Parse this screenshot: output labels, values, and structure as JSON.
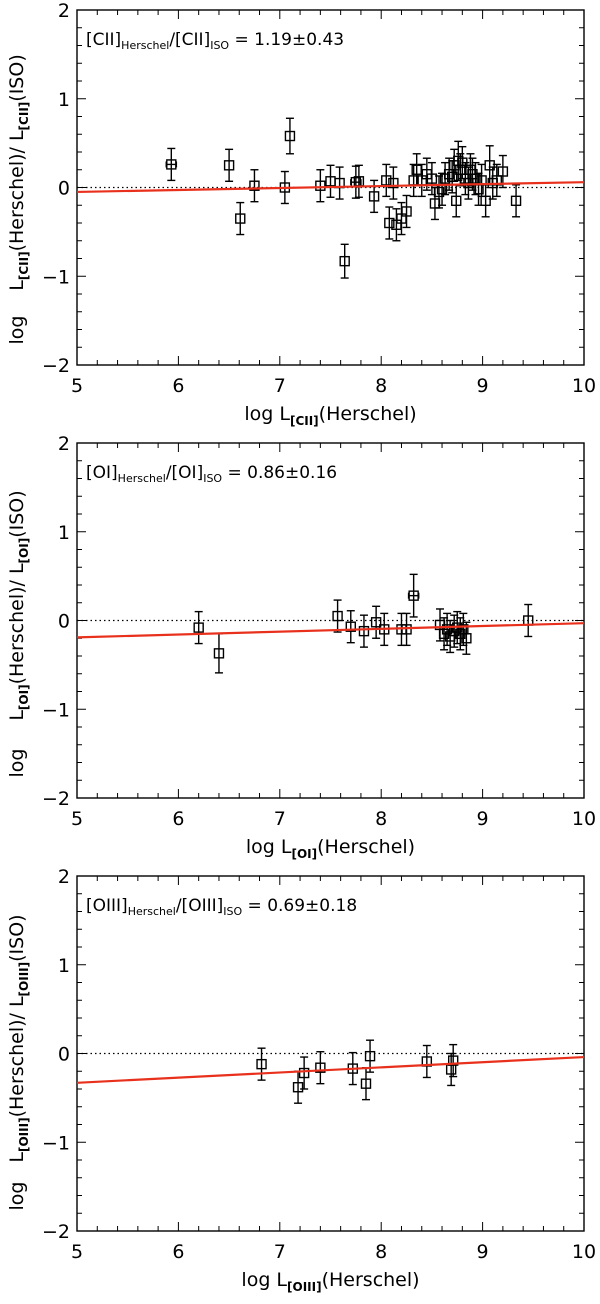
{
  "colors": {
    "axis": "#000000",
    "fit_line": "#e8301c",
    "reference_line": "#000000",
    "marker": "#000000"
  },
  "chart_data": [
    {
      "type": "scatter",
      "line": "CII",
      "annotation": {
        "prefix": "[CII]",
        "sub1": "Herschel",
        "mid": "/[CII]",
        "sub2": "ISO",
        "value": "= 1.19±0.43"
      },
      "xlabel": {
        "pre": "log  L",
        "sub": "[CII]",
        "post": "(Herschel)"
      },
      "ylabel": {
        "log": "log",
        "pre": "L",
        "sub1": "[CII]",
        "mid": "(Herschel)/ L",
        "sub2": "[CII]",
        "post": "(ISO)"
      },
      "xlim": [
        5,
        10
      ],
      "ylim": [
        -2,
        2
      ],
      "x_ticks": [
        5,
        6,
        7,
        8,
        9,
        10
      ],
      "x_tick_labels": [
        "5",
        "6",
        "7",
        "8",
        "9",
        "10"
      ],
      "y_ticks": [
        -2,
        -1,
        0,
        1,
        2
      ],
      "y_tick_labels": [
        "−2",
        "−1",
        "0",
        "1",
        "2"
      ],
      "reference_y": 0,
      "fit_line": {
        "x": [
          5,
          10
        ],
        "y": [
          -0.05,
          0.06
        ]
      },
      "points": [
        {
          "x": 5.93,
          "y": 0.26,
          "yerr": 0.18,
          "xerr": 0.05
        },
        {
          "x": 6.5,
          "y": 0.25,
          "yerr": 0.18
        },
        {
          "x": 6.61,
          "y": -0.35,
          "yerr": 0.18
        },
        {
          "x": 6.75,
          "y": 0.02,
          "yerr": 0.18
        },
        {
          "x": 7.05,
          "y": 0.0,
          "yerr": 0.18
        },
        {
          "x": 7.1,
          "y": 0.58,
          "yerr": 0.2
        },
        {
          "x": 7.4,
          "y": 0.02,
          "yerr": 0.18
        },
        {
          "x": 7.5,
          "y": 0.07,
          "yerr": 0.18
        },
        {
          "x": 7.75,
          "y": 0.06,
          "yerr": 0.18,
          "xerr": 0.05
        },
        {
          "x": 7.78,
          "y": 0.07,
          "yerr": 0.18
        },
        {
          "x": 7.59,
          "y": 0.05,
          "yerr": 0.18
        },
        {
          "x": 7.64,
          "y": -0.83,
          "yerr": 0.19
        },
        {
          "x": 7.93,
          "y": -0.1,
          "yerr": 0.18
        },
        {
          "x": 8.05,
          "y": 0.08,
          "yerr": 0.18
        },
        {
          "x": 8.08,
          "y": -0.4,
          "yerr": 0.18
        },
        {
          "x": 8.12,
          "y": 0.05,
          "yerr": 0.18
        },
        {
          "x": 8.15,
          "y": -0.42,
          "yerr": 0.18
        },
        {
          "x": 8.2,
          "y": -0.35,
          "yerr": 0.18
        },
        {
          "x": 8.25,
          "y": -0.27,
          "yerr": 0.18
        },
        {
          "x": 8.32,
          "y": 0.08,
          "yerr": 0.18
        },
        {
          "x": 8.35,
          "y": 0.2,
          "yerr": 0.18
        },
        {
          "x": 8.4,
          "y": 0.08,
          "yerr": 0.18
        },
        {
          "x": 8.45,
          "y": 0.15,
          "yerr": 0.18
        },
        {
          "x": 8.5,
          "y": 0.1,
          "yerr": 0.18
        },
        {
          "x": 8.53,
          "y": -0.18,
          "yerr": 0.18
        },
        {
          "x": 8.57,
          "y": -0.05,
          "yerr": 0.18
        },
        {
          "x": 8.6,
          "y": -0.02,
          "yerr": 0.18
        },
        {
          "x": 8.63,
          "y": 0.1,
          "yerr": 0.18
        },
        {
          "x": 8.67,
          "y": 0.15,
          "yerr": 0.18
        },
        {
          "x": 8.7,
          "y": 0.12,
          "yerr": 0.18
        },
        {
          "x": 8.72,
          "y": 0.25,
          "yerr": 0.18
        },
        {
          "x": 8.74,
          "y": -0.15,
          "yerr": 0.18
        },
        {
          "x": 8.76,
          "y": 0.3,
          "yerr": 0.22
        },
        {
          "x": 8.78,
          "y": 0.2,
          "yerr": 0.18
        },
        {
          "x": 8.8,
          "y": 0.28,
          "yerr": 0.18
        },
        {
          "x": 8.83,
          "y": 0.1,
          "yerr": 0.18
        },
        {
          "x": 8.86,
          "y": 0.05,
          "yerr": 0.18
        },
        {
          "x": 8.88,
          "y": 0.2,
          "yerr": 0.18
        },
        {
          "x": 8.9,
          "y": 0.15,
          "yerr": 0.18
        },
        {
          "x": 8.93,
          "y": 0.1,
          "yerr": 0.18
        },
        {
          "x": 8.96,
          "y": -0.02,
          "yerr": 0.18
        },
        {
          "x": 8.99,
          "y": 0.08,
          "yerr": 0.18
        },
        {
          "x": 9.03,
          "y": -0.15,
          "yerr": 0.18
        },
        {
          "x": 9.07,
          "y": 0.25,
          "yerr": 0.22
        },
        {
          "x": 9.1,
          "y": 0.05,
          "yerr": 0.18
        },
        {
          "x": 9.14,
          "y": 0.08,
          "yerr": 0.18
        },
        {
          "x": 9.2,
          "y": 0.18,
          "yerr": 0.18
        },
        {
          "x": 9.33,
          "y": -0.15,
          "yerr": 0.18
        }
      ]
    },
    {
      "type": "scatter",
      "line": "OI",
      "annotation": {
        "prefix": "[OI]",
        "sub1": "Herschel",
        "mid": "/[OI]",
        "sub2": "ISO",
        "value": "= 0.86±0.16"
      },
      "xlabel": {
        "pre": "log  L",
        "sub": "[OI]",
        "post": "(Herschel)"
      },
      "ylabel": {
        "log": "log",
        "pre": "L",
        "sub1": "[OI]",
        "mid": "(Herschel)/ L",
        "sub2": "[OI]",
        "post": "(ISO)"
      },
      "xlim": [
        5,
        10
      ],
      "ylim": [
        -2,
        2
      ],
      "x_ticks": [
        5,
        6,
        7,
        8,
        9,
        10
      ],
      "x_tick_labels": [
        "5",
        "6",
        "7",
        "8",
        "9",
        "10"
      ],
      "y_ticks": [
        -2,
        -1,
        0,
        1,
        2
      ],
      "y_tick_labels": [
        "−2",
        "−1",
        "0",
        "1",
        "2"
      ],
      "reference_y": 0,
      "fit_line": {
        "x": [
          5,
          10
        ],
        "y": [
          -0.19,
          -0.03
        ]
      },
      "points": [
        {
          "x": 6.2,
          "y": -0.08,
          "yerr": 0.18
        },
        {
          "x": 6.4,
          "y": -0.37,
          "yerr": 0.22
        },
        {
          "x": 7.57,
          "y": 0.05,
          "yerr": 0.18
        },
        {
          "x": 7.7,
          "y": -0.07,
          "yerr": 0.18
        },
        {
          "x": 7.83,
          "y": -0.12,
          "yerr": 0.18
        },
        {
          "x": 7.95,
          "y": -0.02,
          "yerr": 0.18
        },
        {
          "x": 8.03,
          "y": -0.1,
          "yerr": 0.18
        },
        {
          "x": 8.2,
          "y": -0.1,
          "yerr": 0.18
        },
        {
          "x": 8.25,
          "y": -0.1,
          "yerr": 0.18
        },
        {
          "x": 8.32,
          "y": 0.28,
          "yerr": 0.24,
          "xerr": 0.05
        },
        {
          "x": 8.58,
          "y": -0.05,
          "yerr": 0.18
        },
        {
          "x": 8.62,
          "y": -0.15,
          "yerr": 0.18
        },
        {
          "x": 8.65,
          "y": -0.1,
          "yerr": 0.18
        },
        {
          "x": 8.68,
          "y": -0.18,
          "yerr": 0.18
        },
        {
          "x": 8.72,
          "y": -0.12,
          "yerr": 0.18
        },
        {
          "x": 8.75,
          "y": -0.08,
          "yerr": 0.18
        },
        {
          "x": 8.78,
          "y": -0.15,
          "yerr": 0.18
        },
        {
          "x": 8.81,
          "y": -0.1,
          "yerr": 0.18
        },
        {
          "x": 8.84,
          "y": -0.2,
          "yerr": 0.18
        },
        {
          "x": 9.45,
          "y": 0.0,
          "yerr": 0.18
        }
      ]
    },
    {
      "type": "scatter",
      "line": "OIII",
      "annotation": {
        "prefix": "[OIII]",
        "sub1": "Herschel",
        "mid": "/[OIII]",
        "sub2": "ISO",
        "value": "= 0.69±0.18"
      },
      "xlabel": {
        "pre": "log  L",
        "sub": "[OIII]",
        "post": "(Herschel)"
      },
      "ylabel": {
        "log": "log",
        "pre": "L",
        "sub1": "[OIII]",
        "mid": "(Herschel)/ L",
        "sub2": "[OIII]",
        "post": "(ISO)"
      },
      "xlim": [
        5,
        10
      ],
      "ylim": [
        -2,
        2
      ],
      "x_ticks": [
        5,
        6,
        7,
        8,
        9,
        10
      ],
      "x_tick_labels": [
        "5",
        "6",
        "7",
        "8",
        "9",
        "10"
      ],
      "y_ticks": [
        -2,
        -1,
        0,
        1,
        2
      ],
      "y_tick_labels": [
        "−2",
        "−1",
        "0",
        "1",
        "2"
      ],
      "reference_y": 0,
      "fit_line": {
        "x": [
          5,
          10
        ],
        "y": [
          -0.33,
          -0.04
        ]
      },
      "points": [
        {
          "x": 6.82,
          "y": -0.12,
          "yerr": 0.18
        },
        {
          "x": 7.18,
          "y": -0.38,
          "yerr": 0.18
        },
        {
          "x": 7.24,
          "y": -0.22,
          "yerr": 0.18
        },
        {
          "x": 7.4,
          "y": -0.16,
          "yerr": 0.18
        },
        {
          "x": 7.72,
          "y": -0.17,
          "yerr": 0.18
        },
        {
          "x": 7.85,
          "y": -0.34,
          "yerr": 0.18
        },
        {
          "x": 7.89,
          "y": -0.03,
          "yerr": 0.18
        },
        {
          "x": 8.45,
          "y": -0.09,
          "yerr": 0.18
        },
        {
          "x": 8.69,
          "y": -0.18,
          "yerr": 0.18
        },
        {
          "x": 8.71,
          "y": -0.08,
          "yerr": 0.18
        }
      ]
    }
  ]
}
